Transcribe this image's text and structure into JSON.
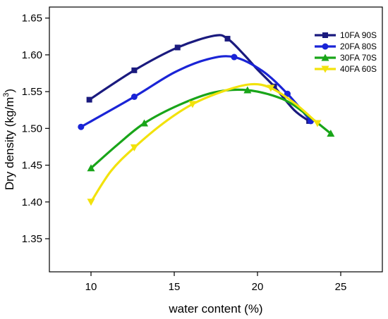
{
  "chart_data": {
    "type": "line",
    "xlabel": "water content (%)",
    "ylabel": {
      "main": "Dry density (kg/m",
      "sup": "3",
      "close": ")"
    },
    "xlim": [
      7.5,
      27.5
    ],
    "ylim": [
      1.305,
      1.665
    ],
    "xticks": [
      10,
      15,
      20,
      25
    ],
    "yticks": [
      1.35,
      1.4,
      1.45,
      1.5,
      1.55,
      1.6,
      1.65
    ],
    "ytick_labels": [
      "1.35",
      "1.40",
      "1.45",
      "1.50",
      "1.55",
      "1.60",
      "1.65"
    ],
    "legend_position": "top-right",
    "series": [
      {
        "name": "10FA 90S",
        "color": "#1a1a7e",
        "marker": "square",
        "points": [
          [
            9.9,
            1.539
          ],
          [
            12.6,
            1.579
          ],
          [
            15.2,
            1.61
          ],
          [
            18.2,
            1.622
          ],
          [
            21.0,
            1.557
          ],
          [
            23.1,
            1.51
          ]
        ],
        "curve": [
          [
            9.9,
            1.539
          ],
          [
            12.6,
            1.579
          ],
          [
            15.2,
            1.61
          ],
          [
            17.4,
            1.626
          ],
          [
            18.2,
            1.622
          ],
          [
            19.2,
            1.6
          ],
          [
            20.0,
            1.58
          ],
          [
            21.0,
            1.557
          ],
          [
            22.2,
            1.525
          ],
          [
            23.1,
            1.51
          ]
        ]
      },
      {
        "name": "20FA 80S",
        "color": "#1a24d6",
        "marker": "circle",
        "points": [
          [
            9.4,
            1.502
          ],
          [
            12.6,
            1.543
          ],
          [
            18.6,
            1.597
          ],
          [
            21.8,
            1.547
          ],
          [
            23.2,
            1.51
          ]
        ],
        "curve": [
          [
            9.4,
            1.502
          ],
          [
            12.6,
            1.543
          ],
          [
            15.0,
            1.576
          ],
          [
            17.0,
            1.594
          ],
          [
            18.6,
            1.597
          ],
          [
            20.3,
            1.578
          ],
          [
            21.8,
            1.547
          ],
          [
            23.2,
            1.51
          ]
        ]
      },
      {
        "name": "30FA 70S",
        "color": "#19a519",
        "marker": "triangle",
        "points": [
          [
            10.0,
            1.446
          ],
          [
            13.2,
            1.507
          ],
          [
            19.4,
            1.552
          ],
          [
            24.4,
            1.493
          ]
        ],
        "curve": [
          [
            10.0,
            1.446
          ],
          [
            11.6,
            1.478
          ],
          [
            13.2,
            1.507
          ],
          [
            15.3,
            1.532
          ],
          [
            17.4,
            1.549
          ],
          [
            19.4,
            1.552
          ],
          [
            21.5,
            1.54
          ],
          [
            23.0,
            1.518
          ],
          [
            24.4,
            1.493
          ]
        ]
      },
      {
        "name": "40FA 60S",
        "color": "#f2e20c",
        "marker": "triangle-down",
        "points": [
          [
            10.0,
            1.4
          ],
          [
            12.6,
            1.474
          ],
          [
            16.1,
            1.533
          ],
          [
            20.8,
            1.555
          ],
          [
            23.6,
            1.507
          ]
        ],
        "curve": [
          [
            10.0,
            1.4
          ],
          [
            11.2,
            1.442
          ],
          [
            12.6,
            1.474
          ],
          [
            14.4,
            1.508
          ],
          [
            16.1,
            1.533
          ],
          [
            18.0,
            1.551
          ],
          [
            19.6,
            1.56
          ],
          [
            20.8,
            1.555
          ],
          [
            22.3,
            1.533
          ],
          [
            23.6,
            1.507
          ]
        ]
      }
    ]
  }
}
